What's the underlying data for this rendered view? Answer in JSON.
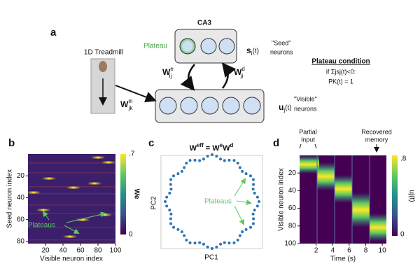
{
  "panel_a": {
    "label": "a",
    "ca3": "CA3",
    "plateau": "Plateau",
    "seed_var": {
      "base": "s",
      "sub": "i",
      "rest": "(t)"
    },
    "seed_name": "\"Seed\"",
    "seed_suffix": "neurons",
    "treadmill": "1D Treadmill",
    "w_e": {
      "base": "W",
      "sup": "e",
      "sub": "ij"
    },
    "w_d": {
      "base": "W",
      "sup": "d",
      "sub": "ji"
    },
    "w_in": {
      "base": "W",
      "sup": "in",
      "sub": "jk"
    },
    "vis_var": {
      "base": "u",
      "sub": "j",
      "rest": "(t)"
    },
    "vis_name": "\"Visible\"",
    "vis_suffix": "neurons",
    "condition_title": "Plateau condition",
    "condition_line1": "if Σjsj(t)<0:",
    "condition_line2": "PK(t) = 1"
  },
  "panel_b": {
    "label": "b",
    "ylabel": "Seed neuron index",
    "xlabel": "Visible neuron index",
    "xlim": [
      0,
      100
    ],
    "xticks": [
      20,
      40,
      60,
      80,
      100
    ],
    "ylim": [
      0,
      82
    ],
    "yticks": [
      20,
      40,
      60,
      80
    ],
    "clim": [
      0,
      0.7
    ],
    "cticks": [
      {
        "value": 0.7,
        "label": ".7"
      },
      0
    ],
    "clabel": "We",
    "annotation": "Plateaus"
  },
  "panel_c": {
    "label": "c",
    "title": {
      "base": "W",
      "sup": "eff",
      "mid": " = W",
      "sup2": "e",
      "end": "W",
      "sup3": "d"
    },
    "ylabel": "PC2",
    "xlabel": "PC1",
    "annotation": "Plateaus"
  },
  "panel_d": {
    "label": "d",
    "ylabel": "Visible neuron index",
    "xlabel": "Time (s)",
    "xlim": [
      0,
      10.5
    ],
    "xticks": [
      2,
      4,
      6,
      8,
      10
    ],
    "ylim": [
      0,
      100
    ],
    "yticks": [
      20,
      40,
      60,
      80,
      100
    ],
    "clim": [
      0,
      0.85
    ],
    "cticks": [
      {
        "value": 0.8,
        "label": ".8"
      },
      0
    ],
    "clabel": "uj(t)",
    "annotation_left": [
      "Partial",
      "input"
    ],
    "annotation_right": [
      "Recovered",
      "memory"
    ]
  }
}
